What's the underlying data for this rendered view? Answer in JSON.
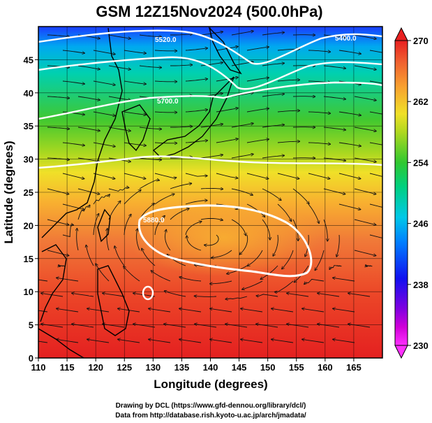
{
  "title": "GSM 12Z15Nov2024 (500.0hPa)",
  "map": {
    "xlabel": "Longitude (degrees)",
    "ylabel": "Latitude (degrees)",
    "x_ticks": [
      "110",
      "115",
      "120",
      "125",
      "130",
      "135",
      "140",
      "145",
      "150",
      "155",
      "160",
      "165"
    ],
    "y_ticks": [
      "0",
      "5",
      "10",
      "15",
      "20",
      "25",
      "30",
      "35",
      "40",
      "45"
    ],
    "lon_range": [
      110,
      170
    ],
    "lat_range": [
      0,
      50
    ],
    "contour_labels": [
      "5400.0",
      "5520.0",
      "5700.0",
      "5880.0"
    ],
    "colors": {
      "cold": "#1a1aff",
      "cyan": "#00c8d8",
      "green": "#38c838",
      "yellow": "#e8e830",
      "orange": "#f07830",
      "red": "#e82828",
      "coast": "#000000",
      "contour": "#ffffff"
    }
  },
  "colorbar": {
    "ticks": [
      "270",
      "262",
      "254",
      "246",
      "238",
      "230"
    ],
    "range": [
      230,
      270
    ]
  },
  "credits": {
    "line1": "Drawing by DCL (https://www.gfd-dennou.org/library/dcl/)",
    "line2": "Data from http://database.rish.kyoto-u.ac.jp/arch/jmadata/"
  }
}
